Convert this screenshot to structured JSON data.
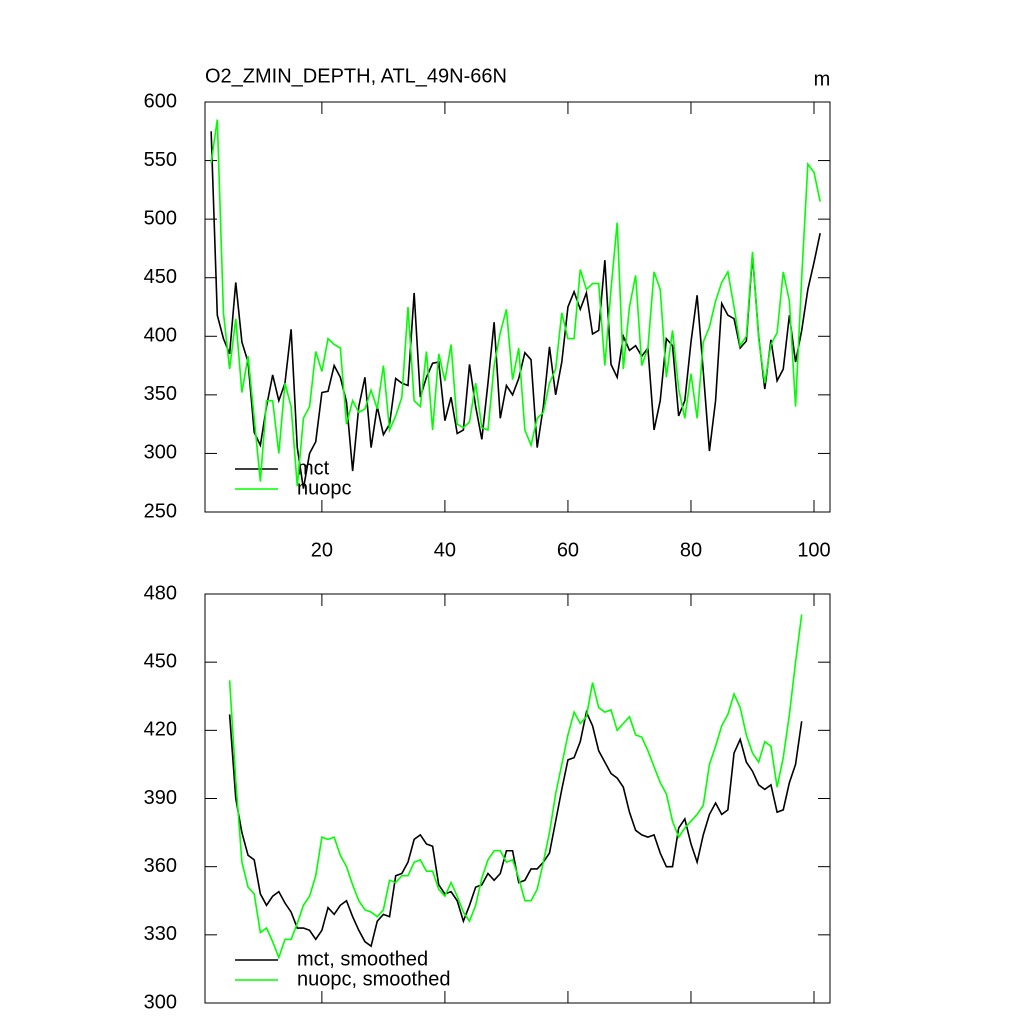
{
  "chart_data": [
    {
      "type": "line",
      "title": "O2_ZMIN_DEPTH, ATL_49N-66N",
      "units": "m",
      "x": [
        2,
        3,
        4,
        5,
        6,
        7,
        8,
        9,
        10,
        11,
        12,
        13,
        14,
        15,
        16,
        17,
        18,
        19,
        20,
        21,
        22,
        23,
        24,
        25,
        26,
        27,
        28,
        29,
        30,
        31,
        32,
        33,
        34,
        35,
        36,
        37,
        38,
        39,
        40,
        41,
        42,
        43,
        44,
        45,
        46,
        47,
        48,
        49,
        50,
        51,
        52,
        53,
        54,
        55,
        56,
        57,
        58,
        59,
        60,
        61,
        62,
        63,
        64,
        65,
        66,
        67,
        68,
        69,
        70,
        71,
        72,
        73,
        74,
        75,
        76,
        77,
        78,
        79,
        80,
        81,
        82,
        83,
        84,
        85,
        86,
        87,
        88,
        89,
        90,
        91,
        92,
        93,
        94,
        95,
        96,
        97,
        98,
        99,
        100,
        101
      ],
      "series": [
        {
          "name": "mct",
          "color": "#000000",
          "values": [
            575,
            418,
            398,
            385,
            446,
            395,
            378,
            318,
            307,
            340,
            367,
            345,
            360,
            406,
            305,
            270,
            300,
            310,
            352,
            353,
            375,
            365,
            344,
            285,
            340,
            365,
            305,
            340,
            316,
            325,
            364,
            360,
            358,
            437,
            348,
            365,
            377,
            378,
            328,
            348,
            317,
            320,
            376,
            340,
            312,
            360,
            412,
            330,
            358,
            350,
            364,
            386,
            380,
            305,
            340,
            391,
            350,
            378,
            425,
            438,
            423,
            437,
            402,
            405,
            465,
            376,
            365,
            400,
            388,
            392,
            383,
            390,
            320,
            345,
            398,
            392,
            332,
            345,
            395,
            435,
            370,
            302,
            345,
            428,
            418,
            415,
            390,
            396,
            470,
            400,
            355,
            397,
            362,
            372,
            418,
            378,
            405,
            440,
            463,
            488
          ]
        },
        {
          "name": "nuopc",
          "color": "#00ff00",
          "values": [
            548,
            585,
            420,
            372,
            415,
            352,
            383,
            330,
            276,
            345,
            345,
            300,
            360,
            340,
            272,
            330,
            340,
            387,
            370,
            398,
            393,
            390,
            325,
            345,
            335,
            338,
            354,
            338,
            375,
            320,
            332,
            348,
            425,
            345,
            340,
            387,
            320,
            385,
            362,
            393,
            325,
            322,
            327,
            360,
            322,
            320,
            375,
            403,
            423,
            363,
            390,
            320,
            307,
            330,
            335,
            360,
            372,
            420,
            398,
            398,
            457,
            440,
            445,
            445,
            375,
            440,
            497,
            372,
            425,
            452,
            375,
            390,
            455,
            440,
            365,
            405,
            355,
            330,
            368,
            330,
            395,
            408,
            430,
            446,
            455,
            425,
            392,
            400,
            472,
            398,
            360,
            393,
            403,
            455,
            430,
            340,
            450,
            547,
            540,
            515
          ]
        }
      ],
      "xlim": [
        1,
        102.6
      ],
      "xticks": [
        20,
        40,
        60,
        80,
        100
      ],
      "show_xtick_labels": true,
      "ylim": [
        250,
        600
      ],
      "yticks": [
        250,
        300,
        350,
        400,
        450,
        500,
        550,
        600
      ],
      "legend": "lower left"
    },
    {
      "type": "line",
      "x": [
        5,
        6,
        7,
        8,
        9,
        10,
        11,
        12,
        13,
        14,
        15,
        16,
        17,
        18,
        19,
        20,
        21,
        22,
        23,
        24,
        25,
        26,
        27,
        28,
        29,
        30,
        31,
        32,
        33,
        34,
        35,
        36,
        37,
        38,
        39,
        40,
        41,
        42,
        43,
        44,
        45,
        46,
        47,
        48,
        49,
        50,
        51,
        52,
        53,
        54,
        55,
        56,
        57,
        58,
        59,
        60,
        61,
        62,
        63,
        64,
        65,
        66,
        67,
        68,
        69,
        70,
        71,
        72,
        73,
        74,
        75,
        76,
        77,
        78,
        79,
        80,
        81,
        82,
        83,
        84,
        85,
        86,
        87,
        88,
        89,
        90,
        91,
        92,
        93,
        94,
        95,
        96,
        97,
        98
      ],
      "series": [
        {
          "name": "mct, smoothed",
          "color": "#000000",
          "values": [
            427,
            390,
            375,
            365,
            363,
            348,
            343,
            347,
            349,
            344,
            340,
            333,
            333,
            332,
            328,
            332,
            342,
            339,
            343,
            345,
            338,
            332,
            327,
            325,
            336,
            339,
            338,
            356,
            357,
            362,
            372,
            374,
            370,
            369,
            352,
            348,
            349,
            345,
            336,
            343,
            351,
            352,
            357,
            354,
            357,
            367,
            367,
            353,
            354,
            359,
            359,
            362,
            366,
            380,
            394,
            407,
            408,
            415,
            428,
            422,
            411,
            406,
            401,
            399,
            395,
            384,
            376,
            374,
            373,
            374,
            366,
            360,
            360,
            377,
            381,
            370,
            362,
            374,
            383,
            388,
            383,
            385,
            410,
            416,
            406,
            402,
            396,
            394,
            396,
            384,
            385,
            397,
            405,
            424
          ]
        },
        {
          "name": "nuopc, smoothed",
          "color": "#00ff00",
          "values": [
            442,
            398,
            362,
            351,
            348,
            331,
            333,
            327,
            320,
            328,
            328,
            335,
            343,
            347,
            356,
            373,
            372,
            373,
            365,
            360,
            352,
            345,
            341,
            340,
            338,
            341,
            354,
            353,
            356,
            356,
            362,
            363,
            358,
            358,
            350,
            347,
            353,
            347,
            340,
            336,
            343,
            355,
            363,
            367,
            367,
            362,
            363,
            355,
            345,
            345,
            350,
            362,
            375,
            392,
            405,
            418,
            428,
            423,
            426,
            441,
            430,
            428,
            429,
            420,
            423,
            426,
            418,
            417,
            411,
            404,
            397,
            392,
            380,
            373,
            377,
            380,
            383,
            387,
            405,
            413,
            422,
            427,
            436,
            430,
            418,
            410,
            406,
            415,
            413,
            395,
            408,
            427,
            450,
            471
          ]
        }
      ],
      "xlim": [
        1,
        102.6
      ],
      "xticks": [
        20,
        40,
        60,
        80,
        100
      ],
      "show_xtick_labels": false,
      "ylim": [
        300,
        480
      ],
      "yticks": [
        300,
        330,
        360,
        390,
        420,
        450,
        480
      ],
      "legend": "lower left"
    }
  ]
}
